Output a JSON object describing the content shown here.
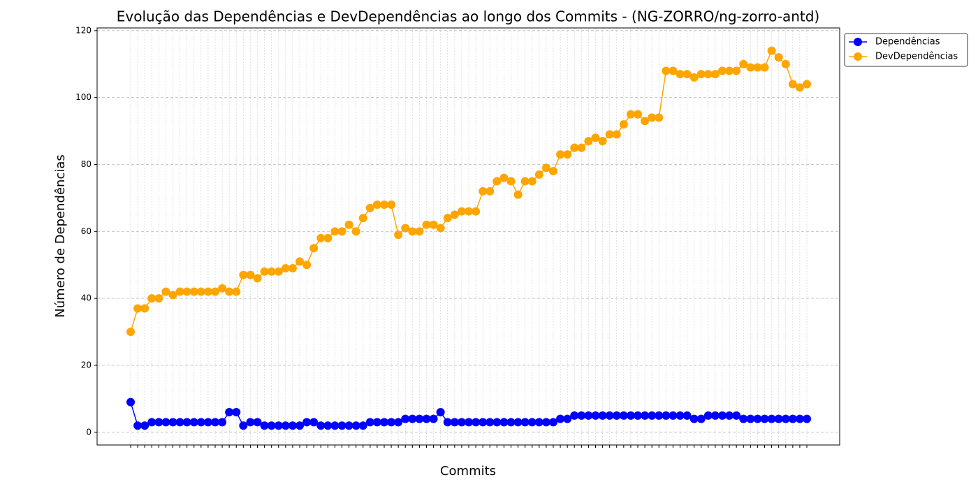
{
  "chart_data": {
    "type": "line",
    "title": "Evolução das Dependências e DevDependências ao longo dos Commits - (NG-ZORRO/ng-zorro-antd)",
    "x_label": "Commits",
    "y_label": "Número de Dependências",
    "categories": [
      null,
      null,
      null,
      null,
      null,
      null,
      null,
      null,
      null,
      null,
      null,
      null,
      null,
      null,
      null,
      null,
      null,
      null,
      null,
      null,
      null,
      null,
      null,
      null,
      null,
      null,
      null,
      null,
      null,
      null,
      null,
      null,
      null,
      null,
      null,
      null,
      null,
      null,
      null,
      null,
      null,
      null,
      null,
      null,
      null,
      null,
      null,
      null,
      null,
      null,
      null,
      null,
      null,
      null,
      null,
      null,
      null,
      null,
      null,
      null,
      null,
      null,
      null,
      null,
      null,
      null,
      null,
      null,
      null,
      null,
      null,
      null,
      null,
      null,
      null,
      null,
      null,
      null,
      null,
      null,
      null,
      null,
      null,
      null,
      null,
      null,
      null,
      null,
      null,
      null,
      null,
      null,
      null,
      null,
      null,
      null,
      null
    ],
    "series": [
      {
        "name": "Dependências",
        "color": "#0000ff",
        "values": [
          9,
          2,
          2,
          3,
          3,
          3,
          3,
          3,
          3,
          3,
          3,
          3,
          3,
          3,
          6,
          6,
          2,
          3,
          3,
          2,
          2,
          2,
          2,
          2,
          2,
          3,
          3,
          2,
          2,
          2,
          2,
          2,
          2,
          2,
          3,
          3,
          3,
          3,
          3,
          4,
          4,
          4,
          4,
          4,
          6,
          3,
          3,
          3,
          3,
          3,
          3,
          3,
          3,
          3,
          3,
          3,
          3,
          3,
          3,
          3,
          3,
          4,
          4,
          5,
          5,
          5,
          5,
          5,
          5,
          5,
          5,
          5,
          5,
          5,
          5,
          5,
          5,
          5,
          5,
          5,
          4,
          4,
          5,
          5,
          5,
          5,
          5,
          4,
          4,
          4,
          4,
          4,
          4,
          4,
          4,
          4,
          4
        ]
      },
      {
        "name": "DevDependências",
        "color": "#ffa500",
        "values": [
          30,
          37,
          37,
          40,
          40,
          42,
          41,
          42,
          42,
          42,
          42,
          42,
          42,
          43,
          42,
          42,
          47,
          47,
          46,
          48,
          48,
          48,
          49,
          49,
          51,
          50,
          55,
          58,
          58,
          60,
          60,
          62,
          60,
          64,
          67,
          68,
          68,
          68,
          59,
          61,
          60,
          60,
          62,
          62,
          61,
          64,
          65,
          66,
          66,
          66,
          72,
          72,
          75,
          76,
          75,
          71,
          75,
          75,
          77,
          79,
          78,
          83,
          83,
          85,
          85,
          87,
          88,
          87,
          89,
          89,
          92,
          95,
          95,
          93,
          94,
          94,
          108,
          108,
          107,
          107,
          106,
          107,
          107,
          107,
          108,
          108,
          108,
          110,
          109,
          109,
          109,
          114,
          112,
          110,
          104,
          103,
          104
        ]
      }
    ],
    "ylim": [
      -3.8,
      120.8
    ],
    "yticks": [
      0,
      20,
      40,
      60,
      80,
      100,
      120
    ],
    "grid": true,
    "legend": "upper right outside"
  }
}
